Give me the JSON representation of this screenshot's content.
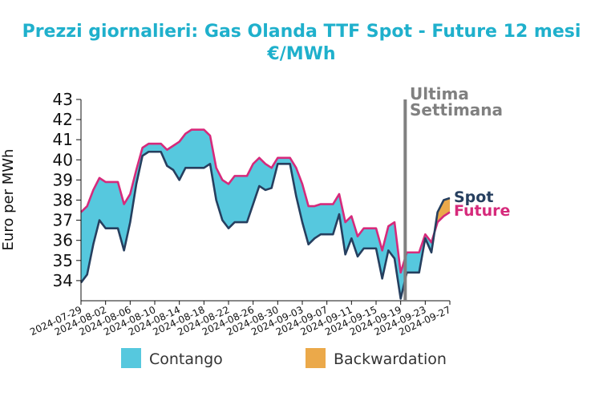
{
  "colors": {
    "spot": "#263f5f",
    "future": "#d62a7b",
    "contango": "#56c8de",
    "backwardation": "#eba94a",
    "marker": "#808080",
    "title": "#1fb0cc"
  },
  "chart_data": {
    "type": "line",
    "title": "Prezzi giornalieri: Gas Olanda TTF Spot - Future 12 mesi",
    "subtitle": "€/MWh",
    "xlabel": "",
    "ylabel": "Euro per MWh",
    "xlim": [
      "2024-07-29",
      "2024-09-27"
    ],
    "ylim": [
      33,
      43
    ],
    "yticks": [
      34,
      35,
      36,
      37,
      38,
      39,
      40,
      41,
      42,
      43
    ],
    "xticks": [
      "2024-07-29",
      "2024-08-02",
      "2024-08-06",
      "2024-08-10",
      "2024-08-14",
      "2024-08-18",
      "2024-08-22",
      "2024-08-26",
      "2024-08-30",
      "2024-09-03",
      "2024-09-07",
      "2024-09-11",
      "2024-09-15",
      "2024-09-19",
      "2024-09-23",
      "2024-09-27"
    ],
    "grid": false,
    "x": [
      "2024-07-29",
      "2024-07-30",
      "2024-07-31",
      "2024-08-01",
      "2024-08-02",
      "2024-08-03",
      "2024-08-04",
      "2024-08-05",
      "2024-08-06",
      "2024-08-07",
      "2024-08-08",
      "2024-08-09",
      "2024-08-10",
      "2024-08-11",
      "2024-08-12",
      "2024-08-13",
      "2024-08-14",
      "2024-08-15",
      "2024-08-16",
      "2024-08-17",
      "2024-08-18",
      "2024-08-19",
      "2024-08-20",
      "2024-08-21",
      "2024-08-22",
      "2024-08-23",
      "2024-08-24",
      "2024-08-25",
      "2024-08-26",
      "2024-08-27",
      "2024-08-28",
      "2024-08-29",
      "2024-08-30",
      "2024-08-31",
      "2024-09-01",
      "2024-09-02",
      "2024-09-03",
      "2024-09-04",
      "2024-09-05",
      "2024-09-06",
      "2024-09-07",
      "2024-09-08",
      "2024-09-09",
      "2024-09-10",
      "2024-09-11",
      "2024-09-12",
      "2024-09-13",
      "2024-09-14",
      "2024-09-15",
      "2024-09-16",
      "2024-09-17",
      "2024-09-18",
      "2024-09-19",
      "2024-09-20",
      "2024-09-21",
      "2024-09-22",
      "2024-09-23",
      "2024-09-24",
      "2024-09-25",
      "2024-09-26",
      "2024-09-27"
    ],
    "series": [
      {
        "name": "Spot",
        "values": [
          33.9,
          34.3,
          35.8,
          37.0,
          36.6,
          36.6,
          36.6,
          35.5,
          36.9,
          38.8,
          40.2,
          40.4,
          40.4,
          40.4,
          39.7,
          39.5,
          39.0,
          39.6,
          39.6,
          39.6,
          39.6,
          39.8,
          38.0,
          37.0,
          36.6,
          36.9,
          36.9,
          36.9,
          37.8,
          38.7,
          38.5,
          38.6,
          39.8,
          39.8,
          39.8,
          38.2,
          36.9,
          35.8,
          36.1,
          36.3,
          36.3,
          36.3,
          37.3,
          35.3,
          36.1,
          35.2,
          35.6,
          35.6,
          35.6,
          34.1,
          35.5,
          35.1,
          33.1,
          34.4,
          34.4,
          34.4,
          36.1,
          35.4,
          37.4,
          38.0,
          38.1
        ]
      },
      {
        "name": "Future",
        "values": [
          37.4,
          37.7,
          38.5,
          39.1,
          38.9,
          38.9,
          38.9,
          37.8,
          38.3,
          39.5,
          40.6,
          40.8,
          40.8,
          40.8,
          40.5,
          40.7,
          40.9,
          41.3,
          41.5,
          41.5,
          41.5,
          41.2,
          39.6,
          39.0,
          38.8,
          39.2,
          39.2,
          39.2,
          39.8,
          40.1,
          39.8,
          39.6,
          40.1,
          40.1,
          40.1,
          39.6,
          38.8,
          37.7,
          37.7,
          37.8,
          37.8,
          37.8,
          38.3,
          36.9,
          37.2,
          36.2,
          36.6,
          36.6,
          36.6,
          35.5,
          36.7,
          36.9,
          34.4,
          35.4,
          35.4,
          35.4,
          36.3,
          35.9,
          36.9,
          37.2,
          37.4
        ]
      }
    ],
    "annotations": [
      {
        "text": "Ultima",
        "x": "2024-09-20"
      },
      {
        "text": "Settimana",
        "x": "2024-09-20"
      }
    ],
    "end_labels": [
      "Spot",
      "Future"
    ],
    "legend": {
      "position": "bottom",
      "items": [
        {
          "name": "Contango",
          "color": "#56c8de"
        },
        {
          "name": "Backwardation",
          "color": "#eba94a"
        }
      ]
    }
  }
}
